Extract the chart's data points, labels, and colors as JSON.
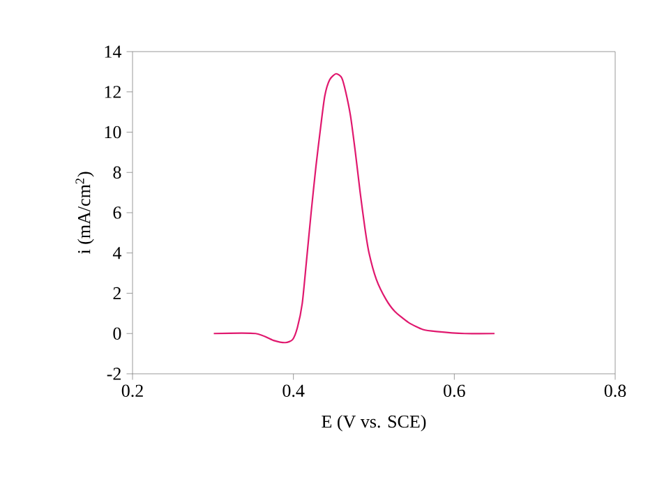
{
  "chart_data": {
    "type": "line",
    "xlabel": "E (V vs. SCE)",
    "ylabel": "i (mA/cm$^{2}$)",
    "xlim": [
      0.2,
      0.8
    ],
    "xticks": [
      0.2,
      0.4,
      0.6,
      0.8
    ],
    "ylim": [
      -2,
      14
    ],
    "yticks": [
      -2,
      0,
      2,
      4,
      6,
      8,
      10,
      12,
      14
    ],
    "grid": false,
    "series": [
      {
        "color": "#e0186e",
        "x": [
          0.301,
          0.353,
          0.376,
          0.39,
          0.399,
          0.405,
          0.411,
          0.416,
          0.422,
          0.428,
          0.434,
          0.439,
          0.445,
          0.453,
          0.46,
          0.465,
          0.471,
          0.477,
          0.483,
          0.489,
          0.494,
          0.503,
          0.515,
          0.526,
          0.543,
          0.561,
          0.578,
          0.613,
          0.65
        ],
        "values": [
          0,
          0,
          -0.35,
          -0.45,
          -0.3,
          0.3,
          1.5,
          3.5,
          6,
          8.3,
          10.3,
          11.8,
          12.6,
          12.9,
          12.7,
          12,
          10.8,
          9,
          7,
          5.2,
          4,
          2.7,
          1.7,
          1.1,
          0.55,
          0.2,
          0.1,
          0,
          0
        ]
      }
    ]
  }
}
